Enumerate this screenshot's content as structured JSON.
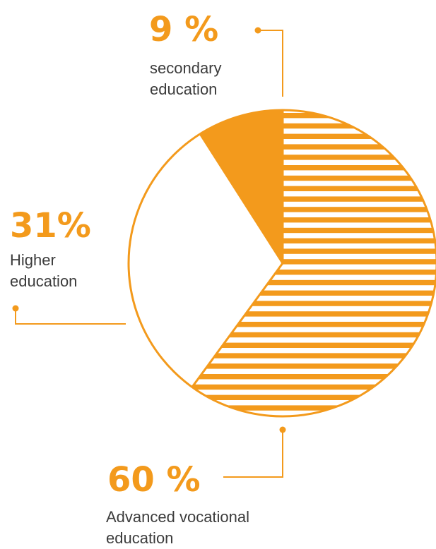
{
  "colors": {
    "accent": "#F39A1C",
    "text": "#3C3C3C",
    "background": "#FFFFFF"
  },
  "chart_data": {
    "type": "pie",
    "categories": [
      "Advanced vocational education",
      "Higher education",
      "secondary education"
    ],
    "values": [
      60,
      31,
      9
    ],
    "value_labels": [
      "60 %",
      "31%",
      "9 %"
    ],
    "captions": [
      "Advanced vocational\neducation",
      "Higher\neducation",
      "secondary\neducation"
    ],
    "fills": [
      "striped",
      "white",
      "solid"
    ],
    "start_angle_deg": 0,
    "direction": "clockwise"
  }
}
